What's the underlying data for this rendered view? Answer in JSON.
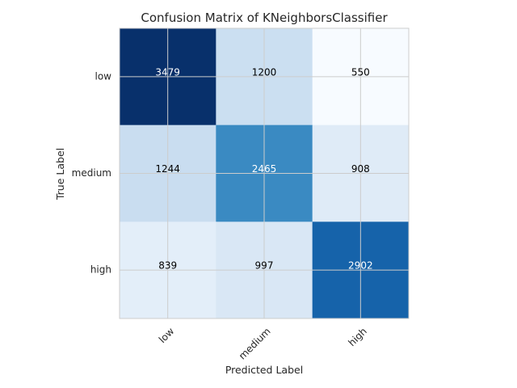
{
  "chart_data": {
    "type": "heatmap",
    "title": "Confusion Matrix of KNeighborsClassifier",
    "xlabel": "Predicted Label",
    "ylabel": "True Label",
    "x_categories": [
      "low",
      "medium",
      "high"
    ],
    "y_categories": [
      "low",
      "medium",
      "high"
    ],
    "values": [
      [
        3479,
        1200,
        550
      ],
      [
        1244,
        2465,
        908
      ],
      [
        839,
        997,
        2902
      ]
    ],
    "colormap": "Blues",
    "grid": true,
    "colors": {
      "grid": "#cccccc",
      "text_dark": "#000000",
      "text_light": "#ffffff"
    }
  }
}
